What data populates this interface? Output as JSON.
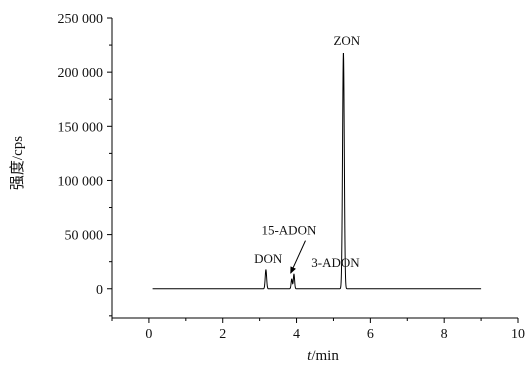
{
  "chart_data": {
    "type": "line",
    "xlabel_italic": "t",
    "xlabel_rest": "/min",
    "ylabel": "强度/cps",
    "xlim": [
      -1,
      10
    ],
    "ylim": [
      -27000,
      250000
    ],
    "x_ticks": [
      0,
      2,
      4,
      6,
      8,
      10
    ],
    "x_tick_labels": [
      "0",
      "2",
      "4",
      "6",
      "8",
      "10"
    ],
    "y_ticks": [
      0,
      50000,
      100000,
      150000,
      200000,
      250000
    ],
    "y_tick_labels": [
      "0",
      "50 000",
      "100 000",
      "150 000",
      "200 000",
      "250 000"
    ],
    "grid": false,
    "line_color": "#000000",
    "baseline_x": [
      0.1,
      9.0
    ],
    "series": [
      {
        "peaks": [
          {
            "name": "DON",
            "retention_min": 3.17,
            "intensity": 17500,
            "width_min": 0.045
          },
          {
            "name": "15-ADON",
            "retention_min": 3.87,
            "intensity": 9000,
            "width_min": 0.04
          },
          {
            "name": "3-ADON",
            "retention_min": 3.93,
            "intensity": 13500,
            "width_min": 0.04
          },
          {
            "name": "ZON",
            "retention_min": 5.27,
            "intensity": 218000,
            "width_min": 0.055
          }
        ]
      }
    ],
    "annotations": [
      {
        "text": "DON",
        "x": 2.85,
        "y": 24000
      },
      {
        "text": "15-ADON",
        "x": 3.05,
        "y": 50000,
        "arrow_to": [
          3.87,
          9000
        ]
      },
      {
        "text": "3-ADON",
        "x": 4.4,
        "y": 20000
      },
      {
        "text": "ZON",
        "x": 5.0,
        "y": 225000
      }
    ]
  }
}
